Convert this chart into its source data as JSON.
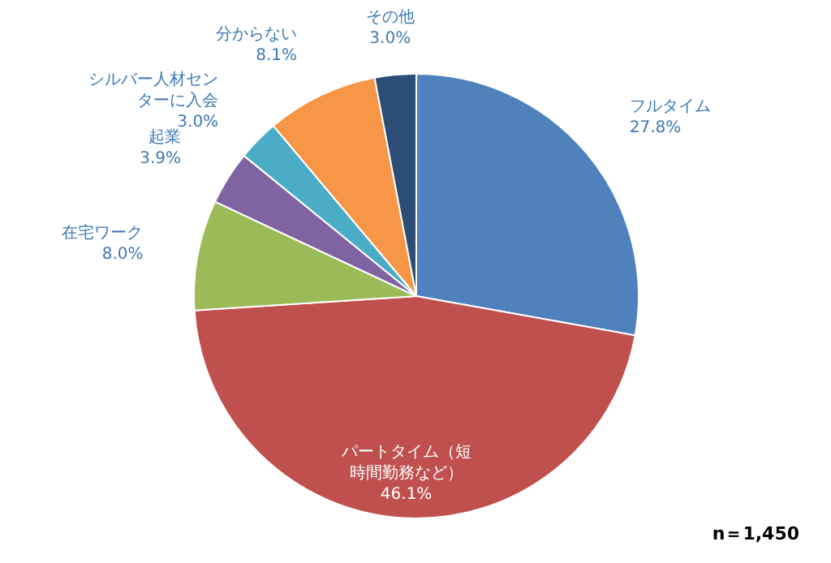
{
  "chart_data": {
    "type": "pie",
    "categories": [
      "フルタイム",
      "パートタイム（短時間勤務など）",
      "在宅ワーク",
      "起業",
      "シルバー人材センターに入会",
      "分からない",
      "その他"
    ],
    "values": [
      27.8,
      46.1,
      8.0,
      3.9,
      3.0,
      8.1,
      3.0
    ],
    "colors": [
      "#4f81bd",
      "#c0504d",
      "#9bbb59",
      "#8064a2",
      "#4bacc6",
      "#f79646",
      "#2c4d75"
    ],
    "value_labels": [
      "27.8%",
      "46.1%",
      "8.0%",
      "3.9%",
      "3.0%",
      "8.1%",
      "3.0%"
    ],
    "annotations": [
      "n＝1,450"
    ]
  }
}
